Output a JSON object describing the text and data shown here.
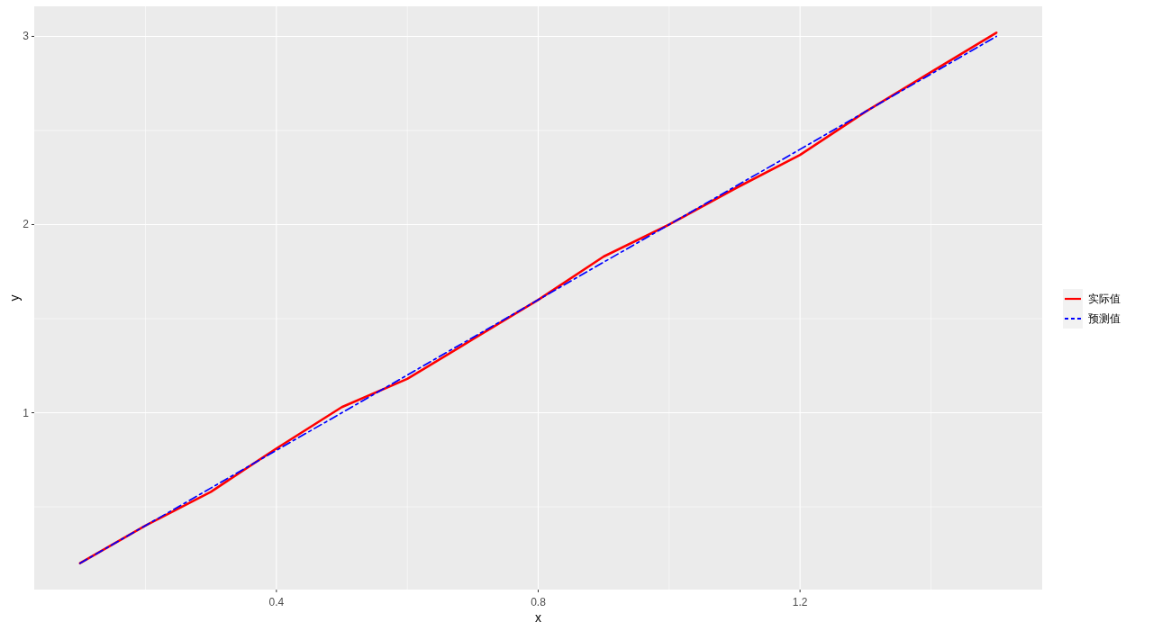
{
  "chart_data": {
    "type": "line",
    "xlabel": "x",
    "ylabel": "y",
    "x": [
      0.1,
      0.2,
      0.3,
      0.4,
      0.5,
      0.6,
      0.7,
      0.8,
      0.9,
      1.0,
      1.1,
      1.2,
      1.3,
      1.4,
      1.5
    ],
    "series": [
      {
        "name": "实际值",
        "color": "#ff0000",
        "line_style": "solid",
        "values": [
          0.2,
          0.4,
          0.58,
          0.81,
          1.03,
          1.18,
          1.39,
          1.6,
          1.83,
          2.0,
          2.19,
          2.37,
          2.6,
          2.81,
          3.02
        ]
      },
      {
        "name": "预测值",
        "color": "#0000ff",
        "line_style": "dashed",
        "values": [
          0.2,
          0.4,
          0.6,
          0.8,
          1.0,
          1.2,
          1.4,
          1.6,
          1.8,
          2.0,
          2.2,
          2.4,
          2.6,
          2.8,
          3.0
        ]
      }
    ],
    "xlim": [
      0.03,
      1.57
    ],
    "ylim": [
      0.06,
      3.16
    ],
    "xticks": [
      0.4,
      0.8,
      1.2
    ],
    "yticks": [
      1,
      2,
      3
    ],
    "grid": true,
    "legend": "right"
  }
}
